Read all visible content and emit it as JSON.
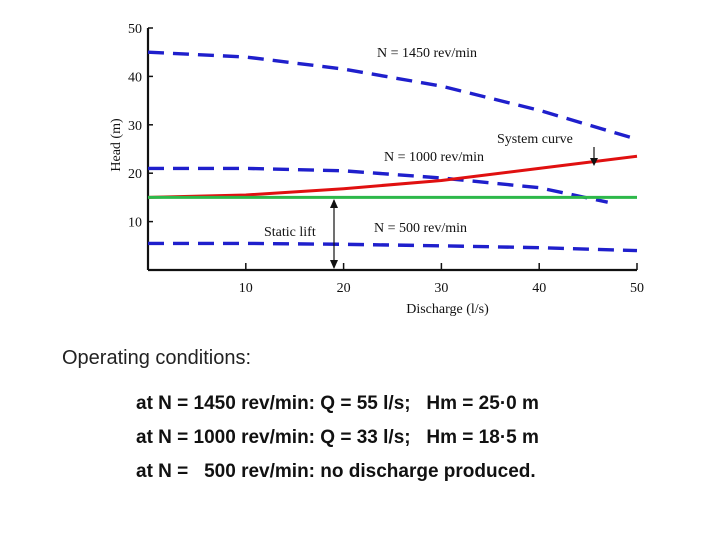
{
  "chart_data": {
    "type": "line",
    "ylabel": "Head (m)",
    "xlabel": "Discharge (l/s)",
    "xlim": [
      0,
      50
    ],
    "ylim": [
      0,
      50
    ],
    "x_ticks": [
      10,
      20,
      30,
      40,
      50
    ],
    "y_ticks": [
      10,
      20,
      30,
      40,
      50
    ],
    "grid": false,
    "series": [
      {
        "name": "N = 1450 rev/min",
        "style": "dashed",
        "color": "#1f1fcc",
        "x": [
          0,
          10,
          20,
          30,
          40,
          50
        ],
        "y": [
          45,
          44,
          41.5,
          38,
          33,
          27
        ]
      },
      {
        "name": "N = 1000 rev/min",
        "style": "dashed",
        "color": "#1f1fcc",
        "x": [
          0,
          10,
          20,
          30,
          40,
          47
        ],
        "y": [
          21,
          21,
          20.5,
          19,
          17,
          14
        ]
      },
      {
        "name": "N = 500 rev/min",
        "style": "dashed",
        "color": "#1f1fcc",
        "x": [
          0,
          10,
          20,
          30,
          40,
          50
        ],
        "y": [
          5.5,
          5.5,
          5.3,
          5,
          4.6,
          4
        ]
      },
      {
        "name": "System curve",
        "style": "solid",
        "color": "#e01010",
        "x": [
          0,
          10,
          20,
          30,
          40,
          50
        ],
        "y": [
          15,
          15.5,
          16.8,
          18.5,
          21,
          23.5
        ]
      },
      {
        "name": "Static lift",
        "style": "solid",
        "color": "#2db84a",
        "x": [
          0,
          50
        ],
        "y": [
          15,
          15
        ]
      }
    ],
    "annotations": [
      {
        "text": "N = 1450 rev/min"
      },
      {
        "text": "System curve"
      },
      {
        "text": "N = 1000 rev/min"
      },
      {
        "text": "Static lift"
      },
      {
        "text": "N = 500 rev/min"
      }
    ]
  },
  "conditions": {
    "title": "Operating conditions:",
    "lines": [
      "at N = 1450 rev/min: Q = 55 l/s;   Hm = 25·0 m",
      "at N = 1000 rev/min: Q = 33 l/s;   Hm = 18·5 m",
      "at N =   500 rev/min: no discharge produced."
    ]
  }
}
